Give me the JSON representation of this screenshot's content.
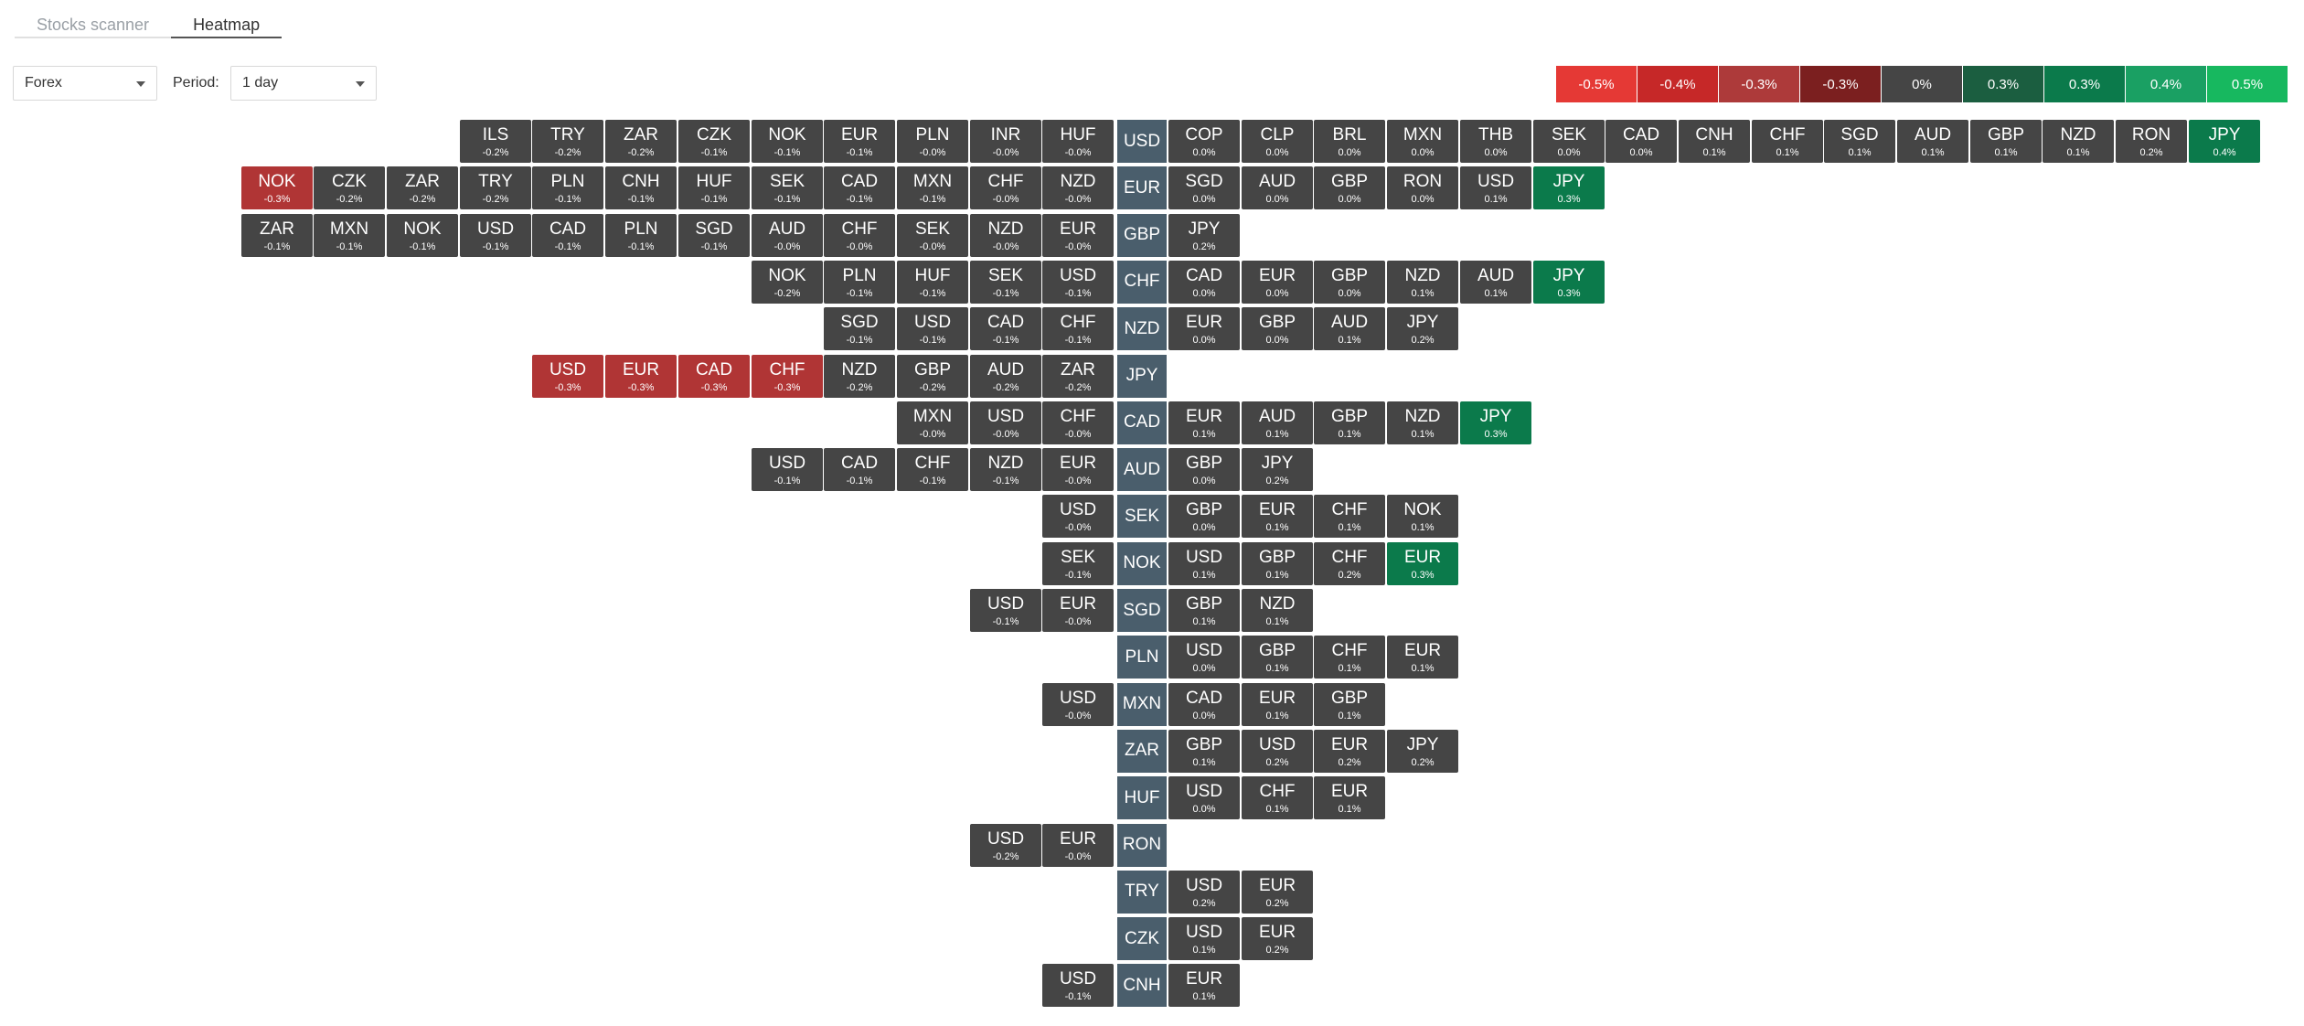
{
  "tabs": [
    {
      "label": "Stocks scanner",
      "active": false
    },
    {
      "label": "Heatmap",
      "active": true
    }
  ],
  "controls": {
    "market": "Forex",
    "period_label": "Period:",
    "period": "1 day"
  },
  "legend": [
    {
      "label": "-0.5%",
      "color": "#e53935"
    },
    {
      "label": "-0.4%",
      "color": "#c62828"
    },
    {
      "label": "-0.3%",
      "color": "#ad3a3a"
    },
    {
      "label": "-0.3%",
      "color": "#7b1f1f"
    },
    {
      "label": "0%",
      "color": "#454545"
    },
    {
      "label": "0.3%",
      "color": "#1b5e40"
    },
    {
      "label": "0.3%",
      "color": "#0b7a4b"
    },
    {
      "label": "0.4%",
      "color": "#1aa063"
    },
    {
      "label": "0.5%",
      "color": "#17b85f"
    }
  ],
  "heatmap": [
    {
      "base": "USD",
      "left": [
        [
          "ILS",
          "-0.2%"
        ],
        [
          "TRY",
          "-0.2%"
        ],
        [
          "ZAR",
          "-0.2%"
        ],
        [
          "CZK",
          "-0.1%"
        ],
        [
          "NOK",
          "-0.1%"
        ],
        [
          "EUR",
          "-0.1%"
        ],
        [
          "PLN",
          "-0.0%"
        ],
        [
          "INR",
          "-0.0%"
        ],
        [
          "HUF",
          "-0.0%"
        ]
      ],
      "right": [
        [
          "COP",
          "0.0%"
        ],
        [
          "CLP",
          "0.0%"
        ],
        [
          "BRL",
          "0.0%"
        ],
        [
          "MXN",
          "0.0%"
        ],
        [
          "THB",
          "0.0%"
        ],
        [
          "SEK",
          "0.0%"
        ],
        [
          "CAD",
          "0.0%"
        ],
        [
          "CNH",
          "0.1%"
        ],
        [
          "CHF",
          "0.1%"
        ],
        [
          "SGD",
          "0.1%"
        ],
        [
          "AUD",
          "0.1%"
        ],
        [
          "GBP",
          "0.1%"
        ],
        [
          "NZD",
          "0.1%"
        ],
        [
          "RON",
          "0.2%"
        ],
        [
          "JPY",
          "0.4%"
        ]
      ]
    },
    {
      "base": "EUR",
      "left": [
        [
          "NOK",
          "-0.3%"
        ],
        [
          "CZK",
          "-0.2%"
        ],
        [
          "ZAR",
          "-0.2%"
        ],
        [
          "TRY",
          "-0.2%"
        ],
        [
          "PLN",
          "-0.1%"
        ],
        [
          "CNH",
          "-0.1%"
        ],
        [
          "HUF",
          "-0.1%"
        ],
        [
          "SEK",
          "-0.1%"
        ],
        [
          "CAD",
          "-0.1%"
        ],
        [
          "MXN",
          "-0.1%"
        ],
        [
          "CHF",
          "-0.0%"
        ],
        [
          "NZD",
          "-0.0%"
        ]
      ],
      "right": [
        [
          "SGD",
          "0.0%"
        ],
        [
          "AUD",
          "0.0%"
        ],
        [
          "GBP",
          "0.0%"
        ],
        [
          "RON",
          "0.0%"
        ],
        [
          "USD",
          "0.1%"
        ],
        [
          "JPY",
          "0.3%"
        ]
      ]
    },
    {
      "base": "GBP",
      "left": [
        [
          "ZAR",
          "-0.1%"
        ],
        [
          "MXN",
          "-0.1%"
        ],
        [
          "NOK",
          "-0.1%"
        ],
        [
          "USD",
          "-0.1%"
        ],
        [
          "CAD",
          "-0.1%"
        ],
        [
          "PLN",
          "-0.1%"
        ],
        [
          "SGD",
          "-0.1%"
        ],
        [
          "AUD",
          "-0.0%"
        ],
        [
          "CHF",
          "-0.0%"
        ],
        [
          "SEK",
          "-0.0%"
        ],
        [
          "NZD",
          "-0.0%"
        ],
        [
          "EUR",
          "-0.0%"
        ]
      ],
      "right": [
        [
          "JPY",
          "0.2%"
        ]
      ]
    },
    {
      "base": "CHF",
      "left": [
        [
          "NOK",
          "-0.2%"
        ],
        [
          "PLN",
          "-0.1%"
        ],
        [
          "HUF",
          "-0.1%"
        ],
        [
          "SEK",
          "-0.1%"
        ],
        [
          "USD",
          "-0.1%"
        ]
      ],
      "right": [
        [
          "CAD",
          "0.0%"
        ],
        [
          "EUR",
          "0.0%"
        ],
        [
          "GBP",
          "0.0%"
        ],
        [
          "NZD",
          "0.1%"
        ],
        [
          "AUD",
          "0.1%"
        ],
        [
          "JPY",
          "0.3%"
        ]
      ]
    },
    {
      "base": "NZD",
      "left": [
        [
          "SGD",
          "-0.1%"
        ],
        [
          "USD",
          "-0.1%"
        ],
        [
          "CAD",
          "-0.1%"
        ],
        [
          "CHF",
          "-0.1%"
        ]
      ],
      "right": [
        [
          "EUR",
          "0.0%"
        ],
        [
          "GBP",
          "0.0%"
        ],
        [
          "AUD",
          "0.1%"
        ],
        [
          "JPY",
          "0.2%"
        ]
      ]
    },
    {
      "base": "JPY",
      "left": [
        [
          "USD",
          "-0.3%"
        ],
        [
          "EUR",
          "-0.3%"
        ],
        [
          "CAD",
          "-0.3%"
        ],
        [
          "CHF",
          "-0.3%"
        ],
        [
          "NZD",
          "-0.2%"
        ],
        [
          "GBP",
          "-0.2%"
        ],
        [
          "AUD",
          "-0.2%"
        ],
        [
          "ZAR",
          "-0.2%"
        ]
      ],
      "right": []
    },
    {
      "base": "CAD",
      "left": [
        [
          "MXN",
          "-0.0%"
        ],
        [
          "USD",
          "-0.0%"
        ],
        [
          "CHF",
          "-0.0%"
        ]
      ],
      "right": [
        [
          "EUR",
          "0.1%"
        ],
        [
          "AUD",
          "0.1%"
        ],
        [
          "GBP",
          "0.1%"
        ],
        [
          "NZD",
          "0.1%"
        ],
        [
          "JPY",
          "0.3%"
        ]
      ]
    },
    {
      "base": "AUD",
      "left": [
        [
          "USD",
          "-0.1%"
        ],
        [
          "CAD",
          "-0.1%"
        ],
        [
          "CHF",
          "-0.1%"
        ],
        [
          "NZD",
          "-0.1%"
        ],
        [
          "EUR",
          "-0.0%"
        ]
      ],
      "right": [
        [
          "GBP",
          "0.0%"
        ],
        [
          "JPY",
          "0.2%"
        ]
      ]
    },
    {
      "base": "SEK",
      "left": [
        [
          "USD",
          "-0.0%"
        ]
      ],
      "right": [
        [
          "GBP",
          "0.0%"
        ],
        [
          "EUR",
          "0.1%"
        ],
        [
          "CHF",
          "0.1%"
        ],
        [
          "NOK",
          "0.1%"
        ]
      ]
    },
    {
      "base": "NOK",
      "left": [
        [
          "SEK",
          "-0.1%"
        ]
      ],
      "right": [
        [
          "USD",
          "0.1%"
        ],
        [
          "GBP",
          "0.1%"
        ],
        [
          "CHF",
          "0.2%"
        ],
        [
          "EUR",
          "0.3%"
        ]
      ]
    },
    {
      "base": "SGD",
      "left": [
        [
          "USD",
          "-0.1%"
        ],
        [
          "EUR",
          "-0.0%"
        ]
      ],
      "right": [
        [
          "GBP",
          "0.1%"
        ],
        [
          "NZD",
          "0.1%"
        ]
      ]
    },
    {
      "base": "PLN",
      "left": [],
      "right": [
        [
          "USD",
          "0.0%"
        ],
        [
          "GBP",
          "0.1%"
        ],
        [
          "CHF",
          "0.1%"
        ],
        [
          "EUR",
          "0.1%"
        ]
      ]
    },
    {
      "base": "MXN",
      "left": [
        [
          "USD",
          "-0.0%"
        ]
      ],
      "right": [
        [
          "CAD",
          "0.0%"
        ],
        [
          "EUR",
          "0.1%"
        ],
        [
          "GBP",
          "0.1%"
        ]
      ]
    },
    {
      "base": "ZAR",
      "left": [],
      "right": [
        [
          "GBP",
          "0.1%"
        ],
        [
          "USD",
          "0.2%"
        ],
        [
          "EUR",
          "0.2%"
        ],
        [
          "JPY",
          "0.2%"
        ]
      ]
    },
    {
      "base": "HUF",
      "left": [],
      "right": [
        [
          "USD",
          "0.0%"
        ],
        [
          "CHF",
          "0.1%"
        ],
        [
          "EUR",
          "0.1%"
        ]
      ]
    },
    {
      "base": "RON",
      "left": [
        [
          "USD",
          "-0.2%"
        ],
        [
          "EUR",
          "-0.0%"
        ]
      ],
      "right": []
    },
    {
      "base": "TRY",
      "left": [],
      "right": [
        [
          "USD",
          "0.2%"
        ],
        [
          "EUR",
          "0.2%"
        ]
      ]
    },
    {
      "base": "CZK",
      "left": [],
      "right": [
        [
          "USD",
          "0.1%"
        ],
        [
          "EUR",
          "0.2%"
        ]
      ]
    },
    {
      "base": "CNH",
      "left": [
        [
          "USD",
          "-0.1%"
        ]
      ],
      "right": [
        [
          "EUR",
          "0.1%"
        ]
      ]
    }
  ]
}
